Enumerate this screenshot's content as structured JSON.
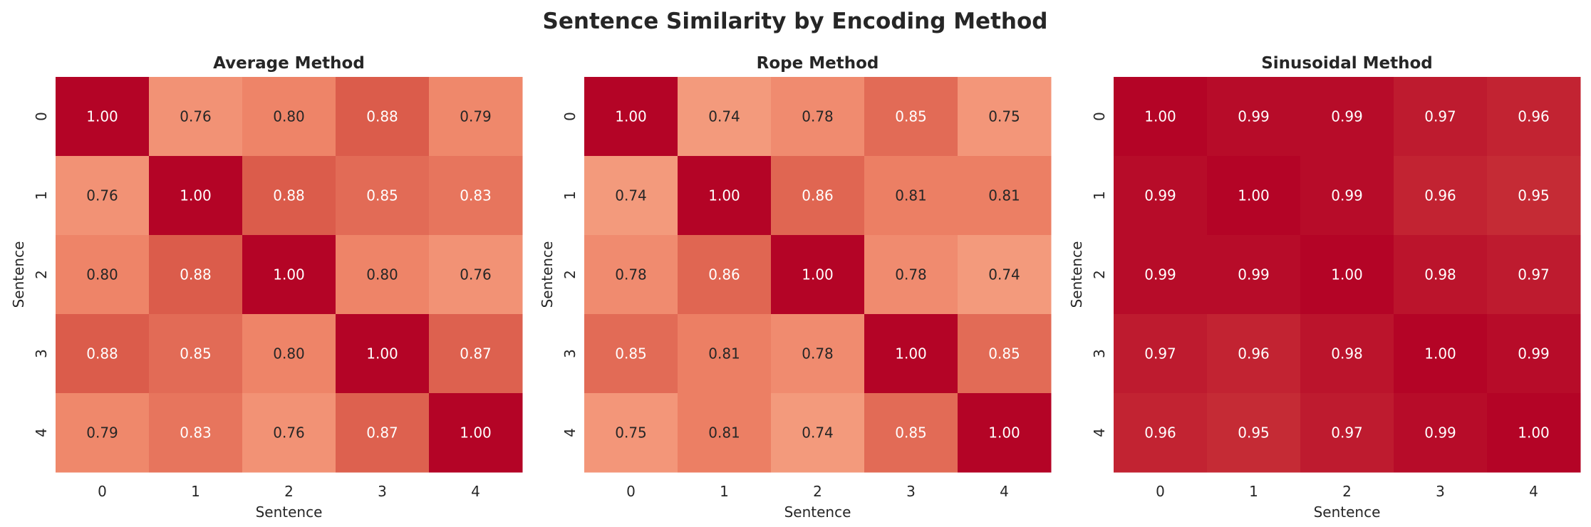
{
  "chart_data": {
    "type": "heatmap",
    "title": "Sentence Similarity by Encoding Method",
    "colormap": "coolwarm",
    "value_range": [
      0,
      1
    ],
    "colorbar": false,
    "panels": [
      {
        "title": "Average Method",
        "xlabel": "Sentence",
        "ylabel": "Sentence",
        "x_ticks": [
          "0",
          "1",
          "2",
          "3",
          "4"
        ],
        "y_ticks": [
          "0",
          "1",
          "2",
          "3",
          "4"
        ],
        "values": [
          [
            1.0,
            0.76,
            0.8,
            0.88,
            0.79
          ],
          [
            0.76,
            1.0,
            0.88,
            0.85,
            0.83
          ],
          [
            0.8,
            0.88,
            1.0,
            0.8,
            0.76
          ],
          [
            0.88,
            0.85,
            0.8,
            1.0,
            0.87
          ],
          [
            0.79,
            0.83,
            0.76,
            0.87,
            1.0
          ]
        ]
      },
      {
        "title": "Rope Method",
        "xlabel": "Sentence",
        "ylabel": "Sentence",
        "x_ticks": [
          "0",
          "1",
          "2",
          "3",
          "4"
        ],
        "y_ticks": [
          "0",
          "1",
          "2",
          "3",
          "4"
        ],
        "values": [
          [
            1.0,
            0.74,
            0.78,
            0.85,
            0.75
          ],
          [
            0.74,
            1.0,
            0.86,
            0.81,
            0.81
          ],
          [
            0.78,
            0.86,
            1.0,
            0.78,
            0.74
          ],
          [
            0.85,
            0.81,
            0.78,
            1.0,
            0.85
          ],
          [
            0.75,
            0.81,
            0.74,
            0.85,
            1.0
          ]
        ]
      },
      {
        "title": "Sinusoidal Method",
        "xlabel": "Sentence",
        "ylabel": "Sentence",
        "x_ticks": [
          "0",
          "1",
          "2",
          "3",
          "4"
        ],
        "y_ticks": [
          "0",
          "1",
          "2",
          "3",
          "4"
        ],
        "values": [
          [
            1.0,
            0.99,
            0.99,
            0.97,
            0.96
          ],
          [
            0.99,
            1.0,
            0.99,
            0.96,
            0.95
          ],
          [
            0.99,
            0.99,
            1.0,
            0.98,
            0.97
          ],
          [
            0.97,
            0.96,
            0.98,
            1.0,
            0.99
          ],
          [
            0.96,
            0.95,
            0.97,
            0.99,
            1.0
          ]
        ]
      }
    ]
  }
}
